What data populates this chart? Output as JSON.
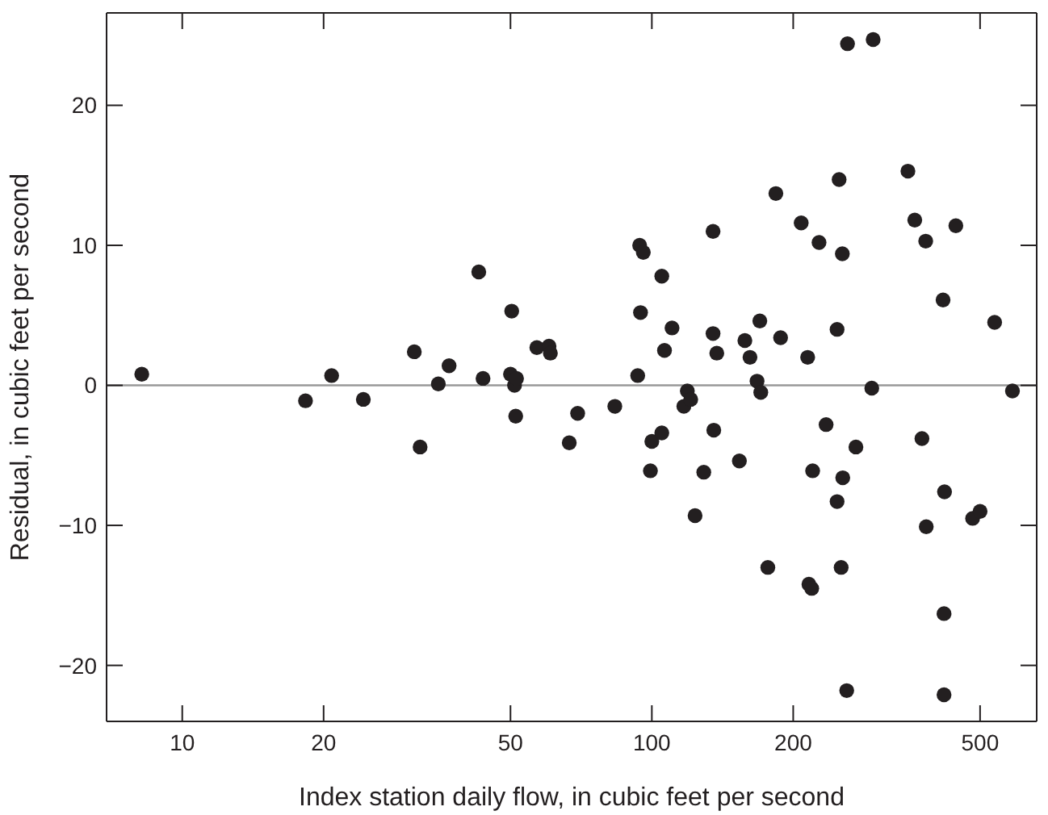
{
  "chart_data": {
    "type": "scatter",
    "xlabel": "Index station daily flow, in cubic feet per second",
    "ylabel": "Residual, in cubic feet per second",
    "log": "x",
    "xlim": [
      6.9,
      660
    ],
    "xticks": [
      10,
      20,
      50,
      100,
      200,
      500
    ],
    "ylim": [
      -24,
      26.6
    ],
    "yticks": [
      {
        "value": -20,
        "label": "−20"
      },
      {
        "value": -10,
        "label": "−10"
      },
      0,
      10,
      20
    ],
    "marker": "circle",
    "ref_lines": [
      {
        "axis": "y",
        "value": 0,
        "color": "#999999"
      }
    ],
    "series": [
      {
        "color": "#231f20",
        "x": [
          8.2,
          18.3,
          20.8,
          24.3,
          31.2,
          32.1,
          35.1,
          37,
          42.8,
          43.7,
          50,
          50.3,
          51,
          51.3,
          51.5,
          56.9,
          60.4,
          60.8,
          66.7,
          69.5,
          83.4,
          93.3,
          94.2,
          94.6,
          95.9,
          99.3,
          100,
          105,
          105,
          106.4,
          110.4,
          117,
          119,
          121,
          123.6,
          129,
          135,
          135,
          135.5,
          137.5,
          153.6,
          157.8,
          161.8,
          167.5,
          169.8,
          170.6,
          176.6,
          183.7,
          188,
          208,
          214.7,
          216,
          219,
          220,
          227,
          235,
          248,
          248,
          250.5,
          253,
          254.5,
          255,
          260,
          261,
          272,
          294,
          296,
          351,
          363,
          376,
          383,
          384,
          417,
          419,
          419,
          420,
          444,
          482,
          500,
          537,
          586
        ],
        "values": [
          0.8,
          -1.1,
          0.7,
          -1.0,
          2.4,
          -4.4,
          0.1,
          1.4,
          8.1,
          0.5,
          0.8,
          5.3,
          0,
          -2.2,
          0.5,
          2.7,
          2.8,
          2.3,
          -4.1,
          -2.0,
          -1.5,
          0.7,
          10.0,
          5.2,
          9.5,
          -6.1,
          -4.0,
          -3.4,
          7.8,
          2.5,
          4.1,
          -1.5,
          -0.4,
          -1.0,
          -9.3,
          -6.2,
          11.0,
          3.7,
          -3.2,
          2.3,
          -5.4,
          3.2,
          2.0,
          0.3,
          4.6,
          -0.5,
          -13.0,
          13.7,
          3.4,
          11.6,
          2.0,
          -14.2,
          -14.5,
          -6.1,
          10.2,
          -2.8,
          4.0,
          -8.3,
          14.7,
          -13.0,
          9.4,
          -6.6,
          -21.8,
          24.4,
          -4.4,
          -0.2,
          24.7,
          15.3,
          11.8,
          -3.8,
          10.3,
          -10.1,
          6.1,
          -16.3,
          -22.1,
          -7.6,
          11.4,
          -9.5,
          -9.0,
          4.5,
          -0.4
        ]
      }
    ]
  }
}
